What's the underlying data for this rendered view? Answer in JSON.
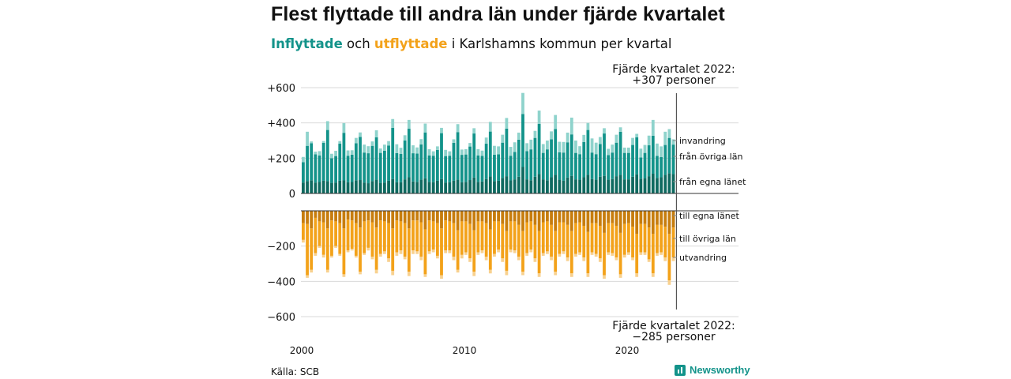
{
  "header": {
    "title": "Flest flyttade till andra län under fjärde kvartalet",
    "subtitle_in": "Inflyttade",
    "subtitle_and": "och",
    "subtitle_out": "utflyttade",
    "subtitle_rest": "i Karlshamns kommun per kvartal"
  },
  "footer": {
    "source": "Källa: SCB",
    "brand": "Newsworthy"
  },
  "colors": {
    "in_local": "#0f6a60",
    "in_other": "#13938a",
    "in_immigration": "#8fd3cc",
    "out_local": "#c77d0e",
    "out_other": "#f3a21a",
    "out_emigration": "#f8d18f"
  },
  "chart_data": {
    "type": "bar",
    "stacked": true,
    "categories_start": "2000 Q1",
    "categories_end": "2022 Q4",
    "x_ticks": [
      "2000",
      "2010",
      "2020"
    ],
    "y_ticks": [
      "+600",
      "+400",
      "+200",
      "0",
      "−200",
      "−400",
      "−600"
    ],
    "ylim_in": [
      0,
      600
    ],
    "ylim_out": [
      -600,
      0
    ],
    "grid": true,
    "legend_in": [
      "invandring",
      "från övriga län",
      "från egna länet"
    ],
    "legend_out": [
      "till egna länet",
      "till övriga län",
      "utvandring"
    ],
    "annotation_top_line1": "Fjärde kvartalet 2022:",
    "annotation_top_line2": "+307 personer",
    "annotation_bottom_line1": "Fjärde kvartalet 2022:",
    "annotation_bottom_line2": "−285 personer",
    "series_in": [
      {
        "name": "från egna länet",
        "values": [
          62,
          70,
          75,
          62,
          65,
          72,
          70,
          60,
          62,
          72,
          74,
          64,
          65,
          75,
          76,
          62,
          58,
          70,
          78,
          60,
          62,
          72,
          82,
          64,
          64,
          80,
          92,
          68,
          66,
          78,
          86,
          66,
          64,
          72,
          82,
          62,
          64,
          72,
          78,
          64,
          66,
          76,
          90,
          66,
          68,
          82,
          96,
          70,
          72,
          88,
          98,
          74,
          80,
          95,
          150,
          80,
          75,
          95,
          110,
          80,
          75,
          92,
          105,
          78,
          72,
          90,
          100,
          80,
          78,
          92,
          105,
          82,
          78,
          95,
          100,
          78,
          82,
          98,
          105,
          80,
          80,
          95,
          108,
          84,
          85,
          98,
          112,
          88,
          92,
          105,
          115,
          110
        ]
      },
      {
        "name": "från övriga län",
        "values": [
          115,
          200,
          210,
          160,
          150,
          215,
          290,
          140,
          150,
          210,
          270,
          150,
          155,
          210,
          245,
          170,
          170,
          200,
          240,
          170,
          180,
          200,
          290,
          165,
          160,
          220,
          275,
          160,
          160,
          200,
          260,
          150,
          150,
          175,
          260,
          150,
          150,
          215,
          270,
          155,
          155,
          190,
          250,
          150,
          145,
          200,
          255,
          150,
          150,
          200,
          270,
          140,
          155,
          210,
          300,
          160,
          175,
          220,
          285,
          150,
          175,
          215,
          260,
          155,
          160,
          200,
          235,
          150,
          145,
          200,
          255,
          150,
          145,
          185,
          240,
          140,
          150,
          190,
          245,
          150,
          150,
          180,
          210,
          120,
          145,
          175,
          215,
          125,
          115,
          170,
          200,
          167
        ]
      },
      {
        "name": "invandring",
        "values": [
          30,
          80,
          10,
          15,
          25,
          10,
          50,
          25,
          30,
          15,
          55,
          30,
          25,
          30,
          25,
          45,
          40,
          25,
          40,
          25,
          35,
          25,
          50,
          50,
          35,
          30,
          50,
          45,
          35,
          30,
          50,
          35,
          25,
          20,
          30,
          35,
          25,
          20,
          45,
          30,
          30,
          20,
          30,
          35,
          30,
          35,
          55,
          50,
          45,
          45,
          60,
          50,
          55,
          40,
          120,
          45,
          55,
          40,
          75,
          50,
          50,
          45,
          80,
          60,
          60,
          55,
          95,
          70,
          45,
          40,
          40,
          80,
          65,
          40,
          30,
          35,
          45,
          45,
          25,
          30,
          30,
          40,
          20,
          50,
          45,
          55,
          90,
          70,
          60,
          75,
          50,
          30
        ]
      }
    ],
    "series_out": [
      {
        "name": "till egna länet",
        "values": [
          -70,
          -75,
          -100,
          -40,
          -60,
          -65,
          -100,
          -55,
          -60,
          -70,
          -100,
          -50,
          -55,
          -70,
          -95,
          -60,
          -55,
          -65,
          -95,
          -55,
          -60,
          -70,
          -100,
          -55,
          -60,
          -70,
          -100,
          -55,
          -55,
          -65,
          -105,
          -55,
          -60,
          -70,
          -100,
          -55,
          -60,
          -70,
          -110,
          -60,
          -60,
          -75,
          -110,
          -60,
          -60,
          -70,
          -105,
          -60,
          -60,
          -75,
          -115,
          -60,
          -60,
          -80,
          -115,
          -65,
          -60,
          -80,
          -115,
          -65,
          -60,
          -80,
          -115,
          -65,
          -65,
          -80,
          -115,
          -70,
          -65,
          -85,
          -120,
          -70,
          -70,
          -85,
          -125,
          -70,
          -70,
          -85,
          -125,
          -75,
          -70,
          -90,
          -130,
          -75,
          -75,
          -95,
          -130,
          -80,
          -80,
          -90,
          -130,
          -95
        ]
      },
      {
        "name": "till övriga län",
        "values": [
          -95,
          -290,
          -235,
          -200,
          -140,
          -185,
          -235,
          -200,
          -140,
          -175,
          -260,
          -175,
          -160,
          -185,
          -250,
          -180,
          -155,
          -195,
          -240,
          -190,
          -170,
          -200,
          -240,
          -180,
          -165,
          -190,
          -245,
          -170,
          -175,
          -195,
          -255,
          -175,
          -160,
          -185,
          -265,
          -170,
          -165,
          -190,
          -225,
          -190,
          -175,
          -195,
          -235,
          -175,
          -165,
          -190,
          -230,
          -185,
          -160,
          -195,
          -225,
          -160,
          -165,
          -180,
          -230,
          -175,
          -160,
          -190,
          -240,
          -175,
          -170,
          -180,
          -230,
          -180,
          -165,
          -185,
          -240,
          -175,
          -170,
          -180,
          -235,
          -165,
          -175,
          -185,
          -240,
          -165,
          -170,
          -180,
          -235,
          -175,
          -165,
          -175,
          -225,
          -160,
          -160,
          -180,
          -225,
          -160,
          -155,
          -175,
          -265,
          -170
        ]
      },
      {
        "name": "utvandring",
        "values": [
          -15,
          -15,
          -15,
          -15,
          -10,
          -15,
          -15,
          -10,
          -10,
          -10,
          -15,
          -10,
          -10,
          -10,
          -15,
          -10,
          -15,
          -15,
          -20,
          -15,
          -15,
          -20,
          -25,
          -20,
          -20,
          -15,
          -25,
          -20,
          -15,
          -20,
          -15,
          -15,
          -15,
          -15,
          -20,
          -15,
          -15,
          -20,
          -15,
          -20,
          -15,
          -20,
          -25,
          -15,
          -15,
          -20,
          -20,
          -15,
          -15,
          -20,
          -25,
          -15,
          -15,
          -20,
          -20,
          -15,
          -15,
          -20,
          -20,
          -15,
          -15,
          -20,
          -20,
          -15,
          -15,
          -20,
          -20,
          -15,
          -15,
          -20,
          -20,
          -15,
          -15,
          -20,
          -20,
          -15,
          -15,
          -15,
          -20,
          -15,
          -15,
          -15,
          -20,
          -15,
          -15,
          -15,
          -20,
          -15,
          -15,
          -20,
          -25,
          -20
        ]
      }
    ]
  }
}
